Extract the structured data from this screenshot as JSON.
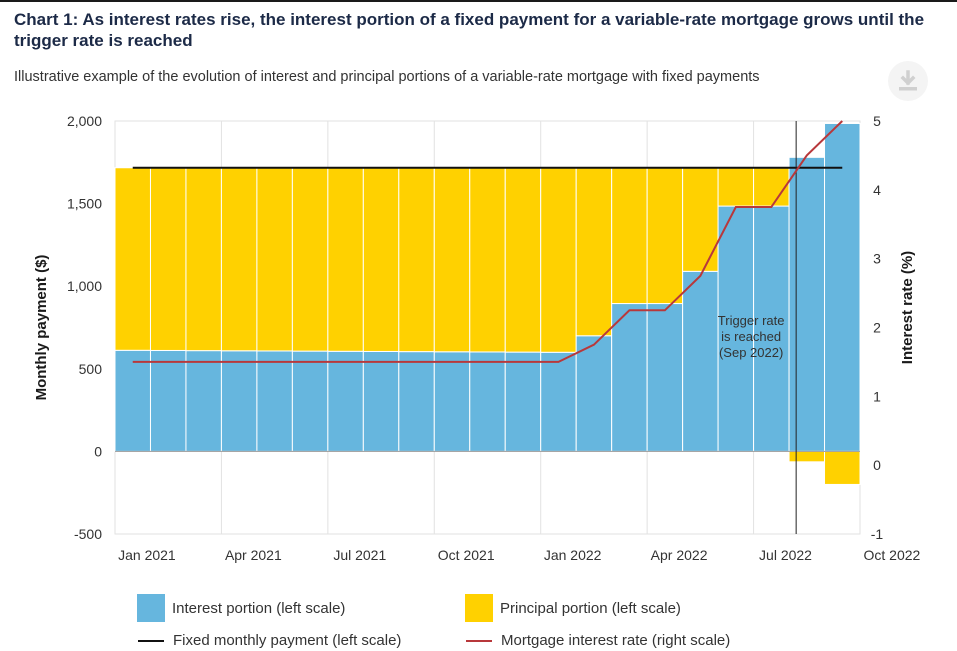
{
  "header": {
    "title": "Chart 1: As interest rates rise, the interest portion of a fixed payment for a variable-rate mortgage grows until the trigger rate is reached",
    "subtitle": "Illustrative example of the evolution of interest and principal portions of a variable-rate mortgage with fixed payments",
    "download_icon": "download-icon"
  },
  "chart_data": {
    "type": "bar",
    "stacked": true,
    "x_tick_labels": [
      "Jan 2021",
      "Apr 2021",
      "Jul 2021",
      "Oct 2021",
      "Jan 2022",
      "Apr 2022",
      "Jul 2022",
      "Oct 2022"
    ],
    "x_tick_month_index": [
      0,
      3,
      6,
      9,
      12,
      15,
      18,
      21
    ],
    "ylabel": "Monthly payment ($)",
    "y2label": "Interest rate (%)",
    "ylim": [
      -500,
      2000
    ],
    "y_ticks": [
      -500,
      0,
      500,
      1000,
      1500,
      2000
    ],
    "y_tick_labels": [
      "-500",
      "0",
      "500",
      "1,000",
      "1,500",
      "2,000"
    ],
    "y2lim": [
      -1,
      5
    ],
    "y2_ticks": [
      -1,
      0,
      1,
      2,
      3,
      4,
      5
    ],
    "y2_tick_labels": [
      "-1",
      "0",
      "1",
      "2",
      "3",
      "4",
      "5"
    ],
    "grid": "vertical",
    "series": [
      {
        "name": "Interest portion (left scale)",
        "color": "#66b6de",
        "axis": "left",
        "values": [
          612,
          611,
          610,
          609,
          608,
          607,
          606,
          605,
          604,
          603,
          602,
          601,
          600,
          700,
          895,
          895,
          1090,
          1485,
          1485,
          1780,
          1985
        ]
      },
      {
        "name": "Principal portion (left scale)",
        "color": "#ffd100",
        "axis": "left",
        "values": [
          1105,
          1106,
          1107,
          1108,
          1109,
          1110,
          1111,
          1112,
          1113,
          1114,
          1115,
          1116,
          1117,
          1017,
          822,
          822,
          627,
          232,
          232,
          -63,
          -200
        ]
      }
    ],
    "fixed_payment": {
      "name": "Fixed monthly payment (left scale)",
      "color": "#111111",
      "value": 1717
    },
    "interest_rate": {
      "name": "Mortgage interest rate (right scale)",
      "color": "#b8383b",
      "axis": "right",
      "values": [
        1.5,
        1.5,
        1.5,
        1.5,
        1.5,
        1.5,
        1.5,
        1.5,
        1.5,
        1.5,
        1.5,
        1.5,
        1.5,
        1.75,
        2.25,
        2.25,
        2.75,
        3.75,
        3.75,
        4.5,
        5.0
      ]
    },
    "annotation": {
      "text_lines": [
        "Trigger rate",
        "is reached",
        "(Sep 2022)"
      ],
      "month_index": 19.2
    },
    "legend_position": "bottom"
  }
}
